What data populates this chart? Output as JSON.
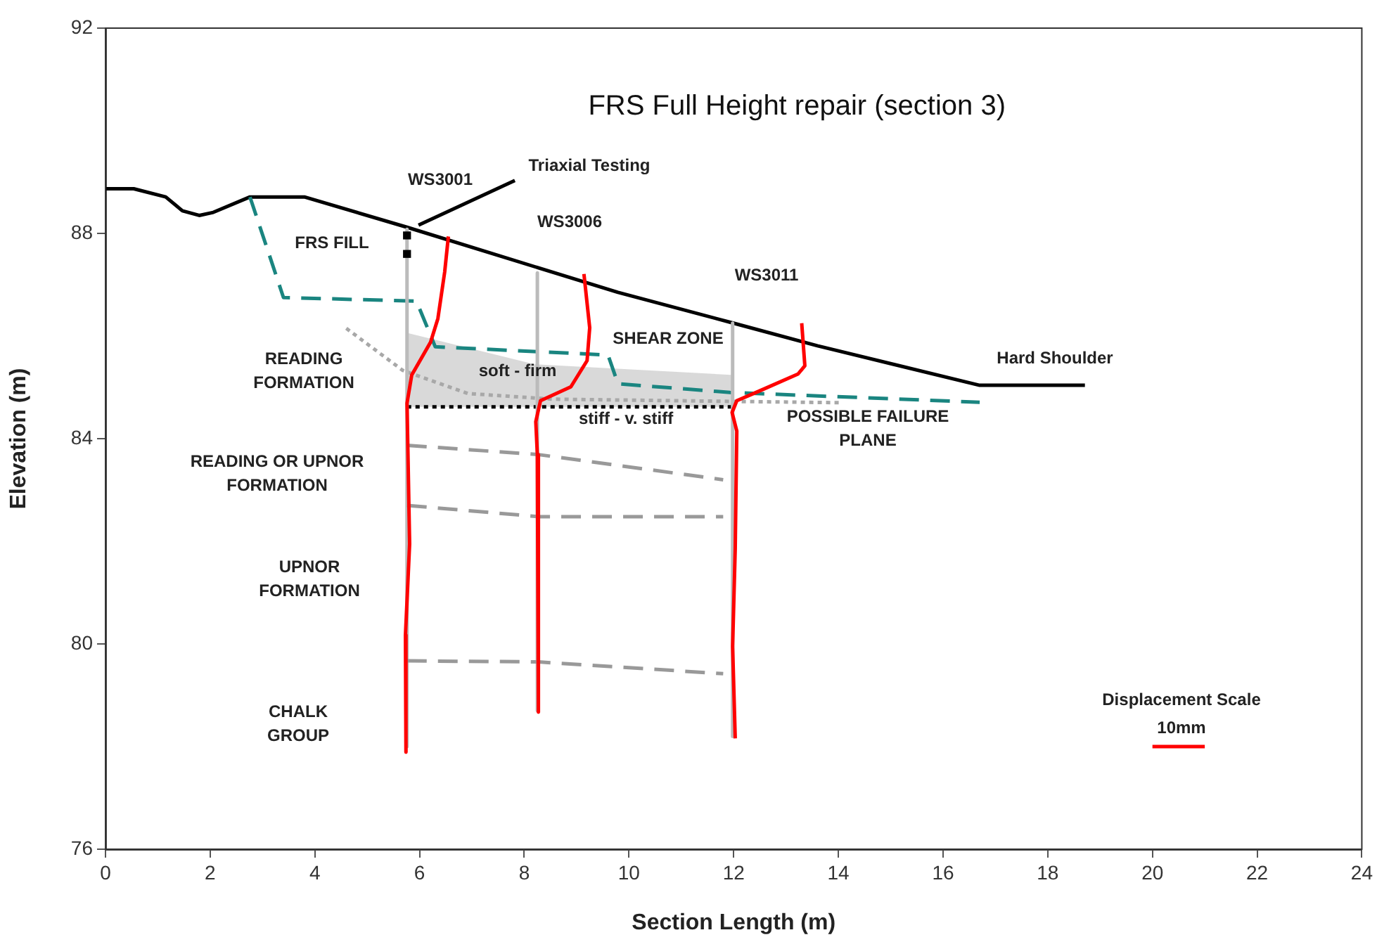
{
  "chart_data": {
    "type": "line",
    "title": "FRS Full Height repair (section 3)",
    "xlabel": "Section Length (m)",
    "ylabel": "Elevation (m)",
    "xlim": [
      0,
      24
    ],
    "ylim": [
      76,
      92
    ],
    "xticks": [
      0,
      2,
      4,
      6,
      8,
      10,
      12,
      14,
      16,
      18,
      20,
      22,
      24
    ],
    "yticks": [
      76,
      80,
      84,
      88,
      92
    ],
    "marker": "none",
    "series": [
      {
        "type": "area",
        "color": "#d0d0d0",
        "x": [
          5.76,
          8.2,
          12
        ],
        "values": [
          86.06,
          85.45,
          85.24
        ]
      },
      {
        "color": "#000000",
        "line_style": "dotted",
        "x": [
          5.76,
          12
        ],
        "values": [
          84.62,
          84.62
        ]
      },
      {
        "color": "#000000",
        "line_style": "solid",
        "x": [
          0,
          0.54,
          1.15,
          1.47,
          1.79,
          2.06,
          2.76,
          3.8,
          5.76,
          9.79,
          12,
          13.6,
          16.7,
          18.71
        ],
        "values": [
          88.87,
          88.87,
          88.71,
          88.44,
          88.35,
          88.41,
          88.71,
          88.71,
          88.12,
          86.85,
          86.25,
          85.81,
          85.04,
          85.04
        ]
      },
      {
        "color": "#1a8580",
        "line_style": "dashed",
        "x": [
          2.76,
          3.4,
          5.94,
          6.3,
          9.6,
          9.79,
          11.93,
          16.7
        ],
        "values": [
          88.71,
          86.75,
          86.68,
          85.79,
          85.63,
          85.07,
          84.9,
          84.71
        ]
      },
      {
        "color": "#a8a8a8",
        "line_style": "dotted",
        "x": [
          4.6,
          5.68,
          6.92,
          8.53,
          14.08
        ],
        "values": [
          86.15,
          85.33,
          84.88,
          84.77,
          84.7
        ]
      },
      {
        "color": "#bbbbbb",
        "line_style": "solid",
        "x": [
          5.76,
          5.76
        ],
        "values": [
          88.08,
          78
        ]
      },
      {
        "color": "#bbbbbb",
        "line_style": "solid",
        "x": [
          8.25,
          8.25
        ],
        "values": [
          87.23,
          78.7
        ]
      },
      {
        "color": "#bbbbbb",
        "line_style": "solid",
        "x": [
          11.98,
          11.98
        ],
        "values": [
          86.25,
          78.2
        ]
      },
      {
        "type": "scatter",
        "marker": "square",
        "color": "#000000",
        "x": [
          5.76,
          5.76
        ],
        "values": [
          87.96,
          87.6
        ]
      },
      {
        "color": "#999999",
        "line_style": "dashed",
        "x": [
          5.76,
          8.27,
          11.8
        ],
        "values": [
          83.87,
          83.69,
          83.2
        ]
      },
      {
        "color": "#999999",
        "line_style": "dashed",
        "x": [
          5.76,
          8.27,
          11.8
        ],
        "values": [
          82.7,
          82.48,
          82.48
        ]
      },
      {
        "color": "#999999",
        "line_style": "dashed",
        "x": [
          5.76,
          8.27,
          11.8
        ],
        "values": [
          79.67,
          79.65,
          79.42
        ]
      },
      {
        "color": "#ff0000",
        "line_style": "solid",
        "x": [
          6.55,
          6.48,
          6.35,
          6.21,
          5.85,
          5.76,
          5.81,
          5.73,
          5.74
        ],
        "values": [
          87.94,
          87.25,
          86.34,
          85.88,
          85.24,
          84.69,
          81.95,
          80.17,
          77.89
        ]
      },
      {
        "color": "#ff0000",
        "line_style": "solid",
        "x": [
          9.14,
          9.25,
          9.2,
          8.89,
          8.31,
          8.22,
          8.25,
          8.27
        ],
        "values": [
          87.21,
          86.16,
          85.52,
          85.01,
          84.74,
          84.33,
          83.69,
          78.67
        ]
      },
      {
        "color": "#ff0000",
        "line_style": "solid",
        "x": [
          13.3,
          13.36,
          13.23,
          12.47,
          12.06,
          11.97,
          12.06,
          12.03,
          11.98,
          12.03
        ],
        "values": [
          86.25,
          85.42,
          85.26,
          84.92,
          84.74,
          84.51,
          84.15,
          81.86,
          79.95,
          78.16
        ]
      },
      {
        "color": "#ff0000",
        "line_style": "solid",
        "x": [
          20,
          21
        ],
        "values": [
          78,
          78
        ]
      },
      {
        "color": "#000000",
        "line_style": "solid",
        "x": [
          7.82,
          5.98
        ],
        "values": [
          89.03,
          88.16
        ]
      }
    ],
    "annotations": [
      "Triaxial Testing",
      "WS3001",
      "WS3006",
      "WS3011",
      "FRS FILL",
      "READING\nFORMATION",
      "SHEAR ZONE",
      "Hard Shoulder",
      "soft - firm",
      "stiff - v. stiff",
      "POSSIBLE FAILURE\nPLANE",
      "READING OR UPNOR\nFORMATION",
      "UPNOR\nFORMATION",
      "CHALK\nGROUP",
      "Displacement Scale",
      "10mm"
    ]
  }
}
